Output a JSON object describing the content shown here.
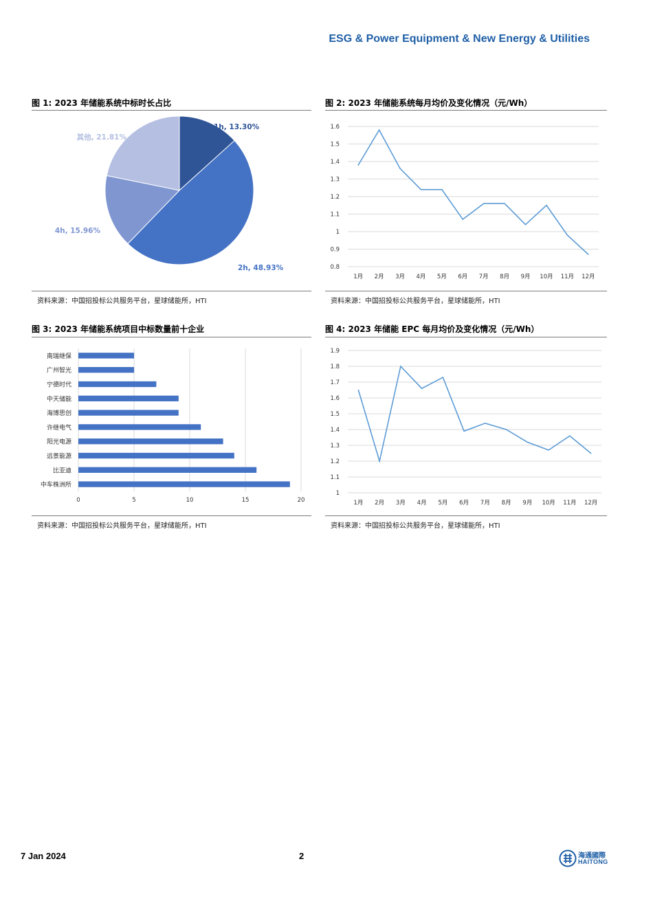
{
  "header": {
    "title": "ESG & Power Equipment & New Energy & Utilities"
  },
  "figures": [
    {
      "title": "图 1: 2023 年储能系统中标时长占比",
      "source": "资料来源：中国招投标公共服务平台，星球储能所，HTI"
    },
    {
      "title": "图 2: 2023 年储能系统每月均价及变化情况（元/Wh）",
      "source": "资料来源：中国招投标公共服务平台，星球储能所，HTI"
    },
    {
      "title": "图 3: 2023 年储能系统项目中标数量前十企业",
      "source": "资料来源：中国招投标公共服务平台，星球储能所，HTI"
    },
    {
      "title": "图 4: 2023 年储能 EPC 每月均价及变化情况（元/Wh）",
      "source": "资料来源：中国招投标公共服务平台，星球储能所，HTI"
    }
  ],
  "chart_data": [
    {
      "type": "pie",
      "slices": [
        {
          "label": "1h, 13.30%",
          "value": 13.3,
          "color": "#2f5597"
        },
        {
          "label": "2h, 48.93%",
          "value": 48.93,
          "color": "#4472c4"
        },
        {
          "label": "4h, 15.96%",
          "value": 15.96,
          "color": "#7f96d1"
        },
        {
          "label": "其他, 21.81%",
          "value": 21.81,
          "color": "#b4bfe2"
        }
      ]
    },
    {
      "type": "line",
      "categories": [
        "1月",
        "2月",
        "3月",
        "4月",
        "5月",
        "6月",
        "7月",
        "8月",
        "9月",
        "10月",
        "11月",
        "12月"
      ],
      "values": [
        1.38,
        1.58,
        1.36,
        1.24,
        1.24,
        1.07,
        1.16,
        1.16,
        1.04,
        1.15,
        0.98,
        0.87
      ],
      "ylim": [
        0.8,
        1.6
      ],
      "yticks": [
        "1.6",
        "1.5",
        "1.4",
        "1.3",
        "1.2",
        "1.1",
        "1",
        "0.9",
        "0.8"
      ],
      "grid": true,
      "color": "#5b9bd5"
    },
    {
      "type": "bar",
      "orientation": "horizontal",
      "categories": [
        "南瑞继保",
        "广州智光",
        "宁德时代",
        "中天储能",
        "海博思创",
        "许继电气",
        "阳光电源",
        "远景能源",
        "比亚迪",
        "中车株洲所"
      ],
      "values": [
        5,
        5,
        7,
        9,
        9,
        11,
        13,
        14,
        16,
        19
      ],
      "xlim": [
        0,
        20
      ],
      "xticks": [
        "0",
        "5",
        "10",
        "15",
        "20"
      ],
      "grid": true,
      "color": "#4472c4"
    },
    {
      "type": "line",
      "categories": [
        "1月",
        "2月",
        "3月",
        "4月",
        "5月",
        "6月",
        "7月",
        "8月",
        "9月",
        "10月",
        "11月",
        "12月"
      ],
      "values": [
        1.65,
        1.2,
        1.8,
        1.66,
        1.73,
        1.39,
        1.44,
        1.4,
        1.32,
        1.27,
        1.36,
        1.25
      ],
      "ylim": [
        1.0,
        1.9
      ],
      "yticks": [
        "1.9",
        "1.8",
        "1.7",
        "1.6",
        "1.5",
        "1.4",
        "1.3",
        "1.2",
        "1.1",
        "1"
      ],
      "grid": true,
      "color": "#5b9bd5"
    }
  ],
  "footer": {
    "date": "7 Jan 2024",
    "page": "2",
    "logo_cn": "海通國際",
    "logo_en": "HAITONG"
  }
}
